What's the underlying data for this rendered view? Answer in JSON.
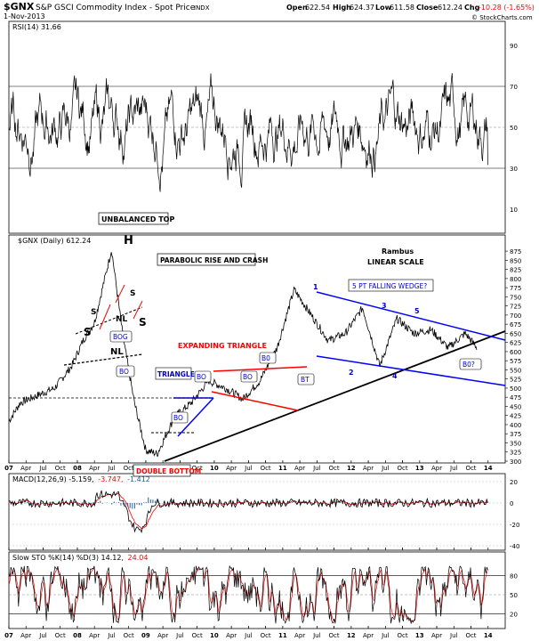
{
  "header": {
    "ticker": "$GNX",
    "name": "S&P GSCI Commodity Index - Spot Price",
    "exchange": "INDX",
    "date": "1-Nov-2013",
    "open_label": "Open",
    "open": "622.54",
    "high_label": "High",
    "high": "624.37",
    "low_label": "Low",
    "low": "611.58",
    "close_label": "Close",
    "close": "612.24",
    "chg_label": "Chg",
    "chg": "-10.28 (-1.65%)",
    "chg_color": "#ff0000",
    "watermark": "© StockCharts.com"
  },
  "colors": {
    "price": "#000000",
    "blue_line": "#0000ff",
    "red_line": "#ff0000",
    "macd_hist": "#1f5fa0",
    "rsi_fill": "#c06060",
    "annotation_text": "#0000cc"
  },
  "chart_data": [
    {
      "type": "line",
      "panel": "rsi",
      "legend": "RSI(14) 31.66",
      "ylim": [
        0,
        100
      ],
      "y_ticks": [
        "90",
        "70",
        "50",
        "30",
        "10"
      ],
      "reference_lines": [
        70,
        50,
        30
      ],
      "last_value": 31.66,
      "grid": false
    },
    {
      "type": "line",
      "panel": "price",
      "legend": "$GNX (Daily) 612.24",
      "ylim": [
        300,
        885
      ],
      "y_ticks": [
        "875",
        "850",
        "825",
        "800",
        "775",
        "750",
        "725",
        "700",
        "675",
        "650",
        "625",
        "600",
        "575",
        "550",
        "525",
        "500",
        "475",
        "450",
        "425",
        "400",
        "375",
        "350",
        "325",
        "300"
      ],
      "scale": "linear",
      "grid": false,
      "series": [
        {
          "x": [
            "2007-01",
            "2007-03",
            "2007-06",
            "2007-09",
            "2007-12",
            "2008-02",
            "2008-04",
            "2008-07",
            "2008-09",
            "2008-11",
            "2009-01",
            "2009-03",
            "2009-06",
            "2009-09",
            "2009-12",
            "2010-03",
            "2010-06",
            "2010-09",
            "2010-12",
            "2011-03",
            "2011-06",
            "2011-09",
            "2011-12",
            "2012-03",
            "2012-06",
            "2012-09",
            "2012-12",
            "2013-03",
            "2013-06",
            "2013-09",
            "2013-11"
          ],
          "values": [
            410,
            460,
            480,
            500,
            560,
            630,
            680,
            880,
            640,
            460,
            330,
            320,
            420,
            460,
            520,
            500,
            470,
            520,
            610,
            770,
            700,
            630,
            650,
            720,
            560,
            690,
            650,
            660,
            610,
            650,
            612
          ]
        }
      ],
      "annotations": [
        {
          "text": "UNBALANCED TOP",
          "boxed": true
        },
        {
          "text": "H"
        },
        {
          "text": "S"
        },
        {
          "text": "S"
        },
        {
          "text": "S"
        },
        {
          "text": "S"
        },
        {
          "text": "NL"
        },
        {
          "text": "NL"
        },
        {
          "text": "PARABOLIC RISE AND CRASH",
          "boxed": true
        },
        {
          "text": "BOG",
          "boxed": true
        },
        {
          "text": "BO",
          "boxed": true
        },
        {
          "text": "TRIANGLE",
          "boxed": true
        },
        {
          "text": "BO",
          "boxed": true
        },
        {
          "text": "BO",
          "boxed": true
        },
        {
          "text": "B0",
          "boxed": true
        },
        {
          "text": "EXPANDING TRIANGLE"
        },
        {
          "text": "BO",
          "boxed": true
        },
        {
          "text": "BT",
          "boxed": true
        },
        {
          "text": "DOUBLE BOTTOM",
          "boxed": true
        },
        {
          "text": "Rambus"
        },
        {
          "text": "LINEAR SCALE"
        },
        {
          "text": "5 PT FALLING WEDGE?",
          "boxed": true
        },
        {
          "text": "1"
        },
        {
          "text": "2"
        },
        {
          "text": "3"
        },
        {
          "text": "4"
        },
        {
          "text": "5"
        },
        {
          "text": "B0?",
          "boxed": true
        }
      ]
    },
    {
      "type": "line",
      "panel": "macd",
      "legend": "MACD(12,26,9) -5.159,",
      "legend_signal": "-3.747,",
      "legend_hist": "-1.412",
      "y_ticks": [
        "20",
        "0",
        "-20",
        "-40"
      ],
      "series": [
        {
          "name": "MACD"
        },
        {
          "name": "Signal"
        },
        {
          "name": "Histogram"
        }
      ]
    },
    {
      "type": "line",
      "panel": "sto",
      "legend": "Slow STO %K(14) %D(3) 14.12,",
      "legend_d": "24.04",
      "ylim": [
        0,
        100
      ],
      "y_ticks": [
        "80",
        "50",
        "20"
      ],
      "reference_lines": [
        80,
        50,
        20
      ]
    }
  ],
  "x_axis": {
    "labels": [
      {
        "t": "07",
        "bold": true,
        "pos": 0.0
      },
      {
        "t": "Apr",
        "bold": false,
        "pos": 0.25
      },
      {
        "t": "Jul",
        "bold": false,
        "pos": 0.5
      },
      {
        "t": "Oct",
        "bold": false,
        "pos": 0.75
      },
      {
        "t": "08",
        "bold": true,
        "pos": 1.0
      },
      {
        "t": "Apr",
        "bold": false,
        "pos": 1.25
      },
      {
        "t": "Jul",
        "bold": false,
        "pos": 1.5
      },
      {
        "t": "Oct",
        "bold": false,
        "pos": 1.75
      },
      {
        "t": "09",
        "bold": true,
        "pos": 2.0
      },
      {
        "t": "Apr",
        "bold": false,
        "pos": 2.25
      },
      {
        "t": "Jul",
        "bold": false,
        "pos": 2.5
      },
      {
        "t": "Oct",
        "bold": false,
        "pos": 2.75
      },
      {
        "t": "10",
        "bold": true,
        "pos": 3.0
      },
      {
        "t": "Apr",
        "bold": false,
        "pos": 3.25
      },
      {
        "t": "Jul",
        "bold": false,
        "pos": 3.5
      },
      {
        "t": "Oct",
        "bold": false,
        "pos": 3.75
      },
      {
        "t": "11",
        "bold": true,
        "pos": 4.0
      },
      {
        "t": "Apr",
        "bold": false,
        "pos": 4.25
      },
      {
        "t": "Jul",
        "bold": false,
        "pos": 4.5
      },
      {
        "t": "Oct",
        "bold": false,
        "pos": 4.75
      },
      {
        "t": "12",
        "bold": true,
        "pos": 5.0
      },
      {
        "t": "Apr",
        "bold": false,
        "pos": 5.25
      },
      {
        "t": "Jul",
        "bold": false,
        "pos": 5.5
      },
      {
        "t": "Oct",
        "bold": false,
        "pos": 5.75
      },
      {
        "t": "13",
        "bold": true,
        "pos": 6.0
      },
      {
        "t": "Apr",
        "bold": false,
        "pos": 6.25
      },
      {
        "t": "Jul",
        "bold": false,
        "pos": 6.5
      },
      {
        "t": "Oct",
        "bold": false,
        "pos": 6.75
      },
      {
        "t": "14",
        "bold": true,
        "pos": 7.0
      }
    ]
  }
}
